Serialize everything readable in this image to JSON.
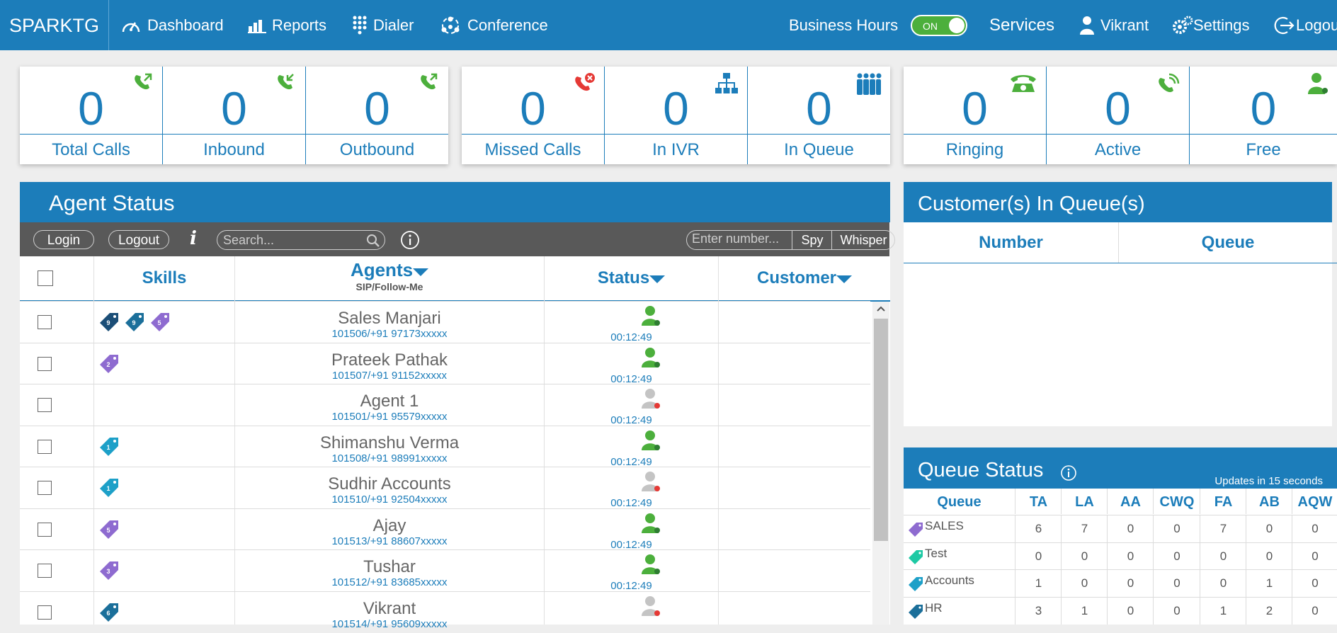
{
  "app": {
    "brand": "SPARKTG"
  },
  "nav": {
    "dashboard": "Dashboard",
    "reports": "Reports",
    "dialer": "Dialer",
    "conference": "Conference",
    "business_hours": "Business Hours",
    "toggle": "ON",
    "services": "Services",
    "user": "Vikrant",
    "settings": "Settings",
    "logout": "Logout"
  },
  "stats": {
    "total_calls": {
      "value": "0",
      "label": "Total Calls"
    },
    "inbound": {
      "value": "0",
      "label": "Inbound"
    },
    "outbound": {
      "value": "0",
      "label": "Outbound"
    },
    "missed": {
      "value": "0",
      "label": "Missed Calls"
    },
    "ivr": {
      "value": "0",
      "label": "In IVR"
    },
    "queue": {
      "value": "0",
      "label": "In Queue"
    },
    "ringing": {
      "value": "0",
      "label": "Ringing"
    },
    "active": {
      "value": "0",
      "label": "Active"
    },
    "free": {
      "value": "0",
      "label": "Free"
    }
  },
  "agent_panel": {
    "title": "Agent Status",
    "login": "Login",
    "logout": "Logout",
    "search_placeholder": "Search...",
    "number_placeholder": "Enter number...",
    "spy": "Spy",
    "whisper": "Whisper",
    "col_skills": "Skills",
    "col_agents": "Agents",
    "col_agents_sub": "SIP/Follow-Me",
    "col_status": "Status",
    "col_customer": "Customer",
    "agents": [
      {
        "name": "Sales Manjari",
        "num": "101506/+91 97173",
        "mask": "xxxxx",
        "time": "00:12:49"
      },
      {
        "name": "Prateek Pathak",
        "num": "101507/+91 91152",
        "mask": "xxxxx",
        "time": "00:12:49"
      },
      {
        "name": "Agent 1",
        "num": "101501/+91 95579",
        "mask": "xxxxx",
        "time": "00:12:49"
      },
      {
        "name": "Shimanshu Verma",
        "num": "101508/+91 98991",
        "mask": "xxxxx",
        "time": "00:12:49"
      },
      {
        "name": "Sudhir Accounts",
        "num": "101510/+91 92504",
        "mask": "xxxxx",
        "time": "00:12:49"
      },
      {
        "name": "Ajay",
        "num": "101513/+91 88607",
        "mask": "xxxxx",
        "time": "00:12:49"
      },
      {
        "name": "Tushar",
        "num": "101512/+91 83685",
        "mask": "xxxxx",
        "time": "00:12:49"
      },
      {
        "name": "Vikrant",
        "num": "101514/+91 95609",
        "mask": "xxxxx",
        "time": ""
      }
    ],
    "skill_tags": [
      [
        "9",
        "9",
        "5"
      ],
      [
        "2"
      ],
      [],
      [
        "1"
      ],
      [
        "1"
      ],
      [
        "5"
      ],
      [
        "3"
      ],
      [
        "6"
      ]
    ]
  },
  "customers_panel": {
    "title": "Customer(s) In Queue(s)",
    "col_number": "Number",
    "col_queue": "Queue"
  },
  "queue_panel": {
    "title": "Queue Status",
    "updates": "Updates in 15 seconds",
    "headers": [
      "Queue",
      "TA",
      "LA",
      "AA",
      "CWQ",
      "FA",
      "AB",
      "AQW"
    ],
    "rows": [
      {
        "name": "SALES",
        "vals": [
          "6",
          "7",
          "0",
          "0",
          "7",
          "0",
          "0"
        ]
      },
      {
        "name": "Test",
        "vals": [
          "0",
          "0",
          "0",
          "0",
          "0",
          "0",
          "0"
        ]
      },
      {
        "name": "Accounts",
        "vals": [
          "1",
          "0",
          "0",
          "0",
          "0",
          "1",
          "0"
        ]
      },
      {
        "name": "HR",
        "vals": [
          "3",
          "1",
          "0",
          "0",
          "1",
          "2",
          "0"
        ]
      }
    ]
  },
  "colors": {
    "primary": "#1c7dba",
    "toolbar": "#595959",
    "available": "#4caf3c",
    "offline": "#bdbdbd",
    "missed": "#e53935"
  }
}
